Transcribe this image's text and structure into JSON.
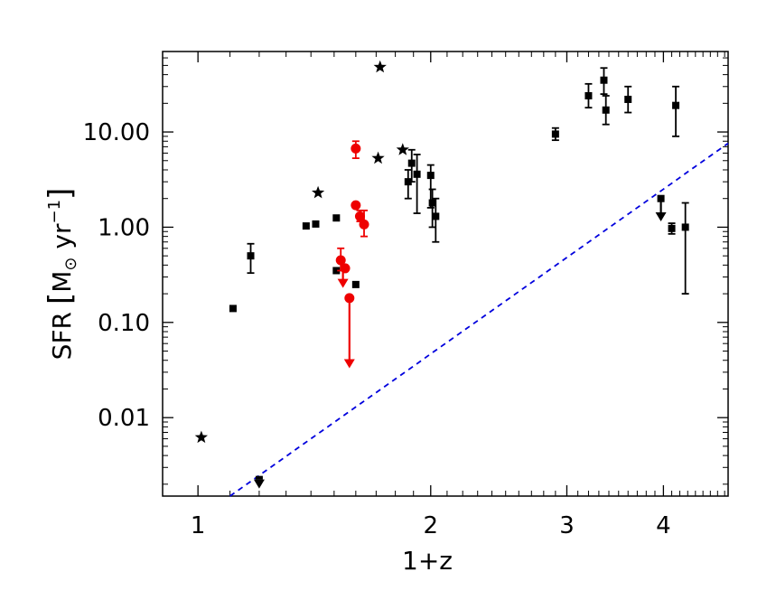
{
  "chart_data": {
    "type": "scatter",
    "title": "",
    "xlabel": "1+z",
    "ylabel": {
      "prefix": "SFR",
      "bracket_open": "[",
      "unit_m": "M",
      "sun_symbol": "⊙",
      "unit_yr": " yr",
      "exponent": "−1",
      "bracket_close": "]"
    },
    "x_scale": "log",
    "y_scale": "log",
    "xlim": [
      0.9,
      4.85
    ],
    "ylim": [
      0.0015,
      70
    ],
    "x_ticks": [
      {
        "value": 1,
        "label": "1"
      },
      {
        "value": 2,
        "label": "2"
      },
      {
        "value": 3,
        "label": "3"
      },
      {
        "value": 4,
        "label": "4"
      }
    ],
    "y_ticks": [
      {
        "value": 0.01,
        "label": "0.01"
      },
      {
        "value": 0.1,
        "label": "0.10"
      },
      {
        "value": 1,
        "label": "1.00"
      },
      {
        "value": 10,
        "label": "10.00"
      }
    ],
    "grid": false,
    "legend": "none",
    "colors": {
      "black": "#000000",
      "red": "#ee0000",
      "curve": "#0000dd"
    },
    "series": [
      {
        "marker": "star",
        "color": "#000000",
        "points": [
          {
            "x": 1.01,
            "y": 0.0062
          },
          {
            "x": 1.43,
            "y": 2.3
          },
          {
            "x": 1.71,
            "y": 5.3
          },
          {
            "x": 1.72,
            "y": 48
          },
          {
            "x": 1.84,
            "y": 6.5
          }
        ]
      },
      {
        "marker": "square",
        "color": "#000000",
        "points": [
          {
            "x": 1.11,
            "y": 0.14
          },
          {
            "x": 1.17,
            "y": 0.5,
            "yerr": [
              0.33,
              0.67
            ]
          },
          {
            "x": 1.38,
            "y": 1.03
          },
          {
            "x": 1.42,
            "y": 1.08
          },
          {
            "x": 1.51,
            "y": 1.25
          },
          {
            "x": 1.51,
            "y": 0.35
          },
          {
            "x": 1.6,
            "y": 0.25
          },
          {
            "x": 1.87,
            "y": 3.0,
            "yerr": [
              2.0,
              4.0
            ]
          },
          {
            "x": 1.89,
            "y": 4.7,
            "yerr": [
              3.0,
              6.5
            ]
          },
          {
            "x": 1.92,
            "y": 3.6,
            "yerr": [
              1.4,
              5.8
            ]
          },
          {
            "x": 2.0,
            "y": 3.5,
            "yerr": [
              1.6,
              4.5
            ]
          },
          {
            "x": 2.01,
            "y": 1.8,
            "yerr": [
              1.0,
              2.5
            ]
          },
          {
            "x": 2.03,
            "y": 1.3,
            "yerr": [
              0.7,
              2.0
            ]
          },
          {
            "x": 2.9,
            "y": 9.5,
            "yerr": [
              8.2,
              11.0
            ]
          },
          {
            "x": 3.2,
            "y": 24,
            "yerr": [
              18,
              32
            ]
          },
          {
            "x": 3.35,
            "y": 35,
            "yerr": [
              25,
              47
            ]
          },
          {
            "x": 3.37,
            "y": 17,
            "yerr": [
              12,
              24
            ]
          },
          {
            "x": 3.6,
            "y": 22,
            "yerr": [
              16,
              30
            ]
          },
          {
            "x": 4.1,
            "y": 0.97,
            "yerr": [
              0.85,
              1.1
            ]
          },
          {
            "x": 4.15,
            "y": 19,
            "yerr": [
              9,
              30
            ]
          },
          {
            "x": 4.27,
            "y": 1.0,
            "yerr": [
              0.2,
              1.8
            ]
          }
        ]
      },
      {
        "marker": "arrow_down",
        "color": "#000000",
        "points": [
          {
            "x": 1.2,
            "y": 0.0018
          },
          {
            "x": 3.97,
            "y": 2.0,
            "to": 1.15
          }
        ]
      },
      {
        "marker": "circle",
        "color": "#ee0000",
        "points": [
          {
            "x": 1.53,
            "y": 0.45,
            "yerr": [
              0.35,
              0.6
            ]
          },
          {
            "x": 1.55,
            "y": 0.37
          },
          {
            "x": 1.6,
            "y": 6.7,
            "yerr": [
              5.3,
              8.0
            ]
          },
          {
            "x": 1.6,
            "y": 1.7
          },
          {
            "x": 1.62,
            "y": 1.3,
            "yerr": [
              1.15,
              1.5
            ]
          },
          {
            "x": 1.64,
            "y": 1.07,
            "yerr": [
              0.8,
              1.5
            ]
          },
          {
            "x": 1.57,
            "y": 0.18
          }
        ]
      },
      {
        "marker": "arrow_down",
        "color": "#ee0000",
        "points": [
          {
            "x": 1.54,
            "y": 0.4,
            "to": 0.23
          },
          {
            "x": 1.57,
            "y": 0.18,
            "to": 0.033
          }
        ]
      }
    ],
    "curve": {
      "style": "dashed",
      "color": "#0000dd",
      "x_start": 1.1,
      "y_start": 0.0015,
      "x_end": 4.85,
      "y_end": 7.6
    }
  }
}
